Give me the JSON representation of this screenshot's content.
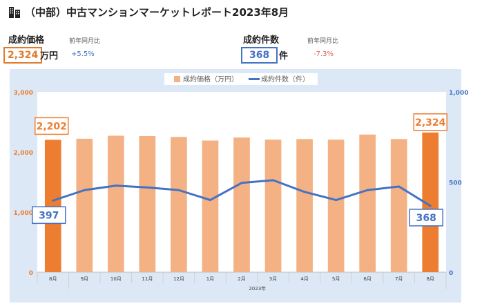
{
  "page": {
    "title_icon": "building-icon",
    "title": "（中部）中古マンションマーケットレポート2023年8月"
  },
  "kpi": {
    "price": {
      "label": "成約価格",
      "sub": "前年同月比",
      "value": "2,324",
      "unit": "万円",
      "change": "+5.5%",
      "color": "#e07b2a",
      "change_color": "#4472c4"
    },
    "count": {
      "label": "成約件数",
      "sub": "前年同月比",
      "value": "368",
      "unit": "件",
      "change": "-7.3%",
      "color": "#4472c4",
      "change_color": "#e06060"
    }
  },
  "chart_data": {
    "type": "bar",
    "categories": [
      "8月",
      "9月",
      "10月",
      "11月",
      "12月",
      "1月",
      "2月",
      "3月",
      "4月",
      "5月",
      "6月",
      "7月",
      "8月"
    ],
    "year_label": "2023年",
    "series": [
      {
        "name": "成約価格（万円）",
        "type": "bar",
        "axis": "left",
        "values": [
          2202,
          2220,
          2270,
          2265,
          2250,
          2190,
          2240,
          2205,
          2215,
          2205,
          2290,
          2215,
          2324
        ],
        "color": "#f4b183",
        "highlight_color": "#ed7d31",
        "highlight_indices": [
          0,
          12
        ]
      },
      {
        "name": "成約件数（件）",
        "type": "line",
        "axis": "right",
        "values": [
          397,
          455,
          480,
          470,
          455,
          400,
          495,
          510,
          445,
          400,
          455,
          475,
          368
        ],
        "color": "#4472c4"
      }
    ],
    "left_axis": {
      "ylim": [
        0,
        3000
      ],
      "ticks": [
        "0",
        "1,000",
        "2,000",
        "3,000"
      ],
      "tick_values": [
        0,
        1000,
        2000,
        3000
      ],
      "color": "#ed7d31"
    },
    "right_axis": {
      "ylim": [
        0,
        1000
      ],
      "ticks": [
        "0",
        "500",
        "1,000"
      ],
      "tick_values": [
        0,
        500,
        1000
      ],
      "color": "#4472c4"
    },
    "callouts": {
      "bar_first": "2,202",
      "bar_last": "2,324",
      "line_first": "397",
      "line_last": "368"
    },
    "legend_position": "top-center",
    "grid": false
  }
}
